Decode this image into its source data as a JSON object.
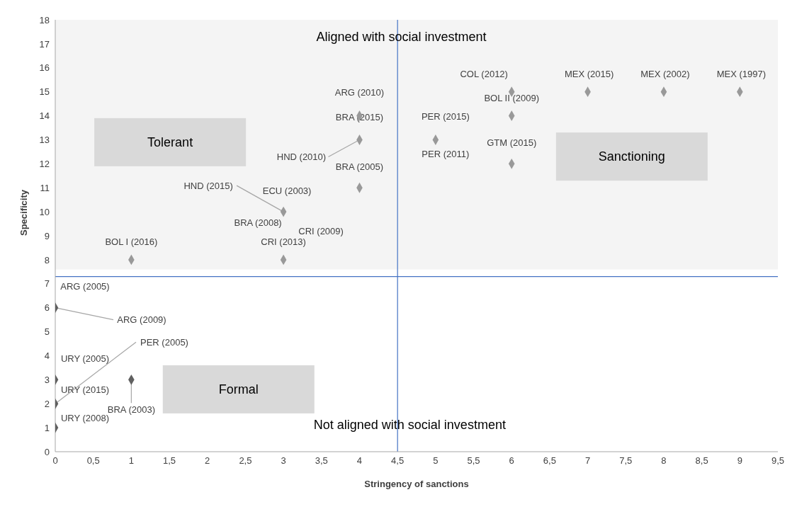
{
  "chart_data": {
    "type": "scatter",
    "xlabel": "Stringency of sanctions",
    "ylabel": "Specificity",
    "marker": "diamond",
    "grid": false,
    "legend": false,
    "xlim": [
      0,
      9.5
    ],
    "ylim": [
      0,
      18
    ],
    "xticks": [
      0,
      {
        "value": 0.5,
        "label": "0,5"
      },
      1,
      {
        "value": 1.5,
        "label": "1,5"
      },
      2,
      {
        "value": 2.5,
        "label": "2,5"
      },
      3,
      {
        "value": 3.5,
        "label": "3,5"
      },
      4,
      {
        "value": 4.5,
        "label": "4,5"
      },
      5,
      {
        "value": 5.5,
        "label": "5,5"
      },
      6,
      {
        "value": 6.5,
        "label": "6,5"
      },
      7,
      {
        "value": 7.5,
        "label": "7,5"
      },
      8,
      {
        "value": 8.5,
        "label": "8,5"
      },
      9,
      {
        "value": 9.5,
        "label": "9,5"
      }
    ],
    "yticks": [
      0,
      1,
      2,
      3,
      4,
      5,
      6,
      7,
      8,
      9,
      10,
      11,
      12,
      13,
      14,
      15,
      16,
      17,
      18
    ],
    "series": [
      {
        "color": "#999999",
        "x": [
          1,
          3,
          3,
          4,
          4,
          4,
          5,
          6,
          6,
          6,
          7,
          8,
          9
        ],
        "values": [
          8,
          8,
          10,
          11,
          13,
          14,
          13,
          12,
          14,
          15,
          15,
          15,
          15
        ]
      },
      {
        "color": "#606060",
        "x": [
          0,
          0,
          0,
          0,
          1
        ],
        "values": [
          6,
          3,
          2,
          1,
          3
        ]
      }
    ],
    "ref_lines": [
      {
        "axis": "x",
        "value": 4.5,
        "color": "#4472c4"
      },
      {
        "axis": "y",
        "value": 7.3,
        "color": "#4472c4"
      }
    ],
    "bands": [
      {
        "axis": "y",
        "from": 7.6,
        "to": 18,
        "color": "#f4f4f4"
      }
    ],
    "annotations": [
      "Aligned with social investment",
      "Not aligned with social investment",
      "Tolerant",
      "Sanctioning",
      "Formal",
      {
        "text": "COL (2012)",
        "x": 6,
        "y": 15
      },
      {
        "text": "MEX (2015)",
        "x": 7,
        "y": 15
      },
      {
        "text": "MEX (2002)",
        "x": 8,
        "y": 15
      },
      {
        "text": "MEX (1997)",
        "x": 9,
        "y": 15
      },
      {
        "text": "BOL II (2009)",
        "x": 6,
        "y": 14
      },
      {
        "text": "ARG (2010)",
        "x": 4,
        "y": 14
      },
      {
        "text": "PER (2015)",
        "x": 5,
        "y": 13
      },
      {
        "text": "BRA (2015)",
        "x": 4,
        "y": 13
      },
      {
        "text": "HND (2010)",
        "x": 4,
        "y": 13
      },
      {
        "text": "PER (2011)",
        "x": 5,
        "y": 13
      },
      {
        "text": "GTM (2015)",
        "x": 6,
        "y": 12
      },
      {
        "text": "BRA (2005)",
        "x": 4,
        "y": 11
      },
      {
        "text": "HND (2015)",
        "x": 3,
        "y": 10
      },
      {
        "text": "ECU (2003)",
        "x": 3,
        "y": 10
      },
      {
        "text": "BRA (2008)",
        "x": 3,
        "y": 10
      },
      {
        "text": "CRI (2009)",
        "x": 3,
        "y": 8
      },
      {
        "text": "CRI (2013)",
        "x": 3,
        "y": 8
      },
      {
        "text": "BOL I (2016)",
        "x": 1,
        "y": 8
      },
      {
        "text": "ARG (2005)",
        "x": 0,
        "y": 6
      },
      {
        "text": "ARG (2009)",
        "x": 0,
        "y": 6
      },
      {
        "text": "PER (2005)",
        "x": 0,
        "y": 2
      },
      {
        "text": "URY (2005)",
        "x": 0,
        "y": 3
      },
      {
        "text": "URY (2015)",
        "x": 0,
        "y": 2
      },
      {
        "text": "URY (2008)",
        "x": 0,
        "y": 1
      },
      {
        "text": "BRA (2003)",
        "x": 1,
        "y": 3
      }
    ]
  }
}
